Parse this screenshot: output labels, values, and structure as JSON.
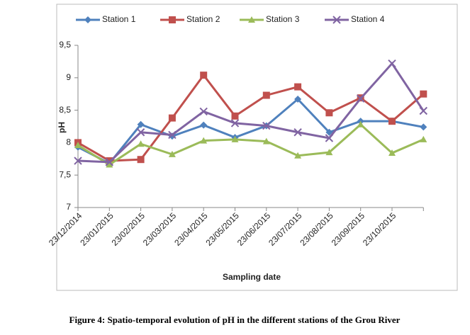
{
  "chart_data": {
    "type": "line",
    "caption": "Figure 4: Spatio-temporal evolution of pH in the different stations of the Grou River",
    "x_label": "Sampling date",
    "y_label": "pH",
    "categories": [
      "23/12/2014",
      "23/01/2015",
      "23/02/2015",
      "23/03/2015",
      "23/04/2015",
      "23/05/2015",
      "23/06/2015",
      "23/07/2015",
      "23/08/2015",
      "23/09/2015",
      "23/10/2015",
      null
    ],
    "ylim": [
      7,
      9.5
    ],
    "yticks": [
      7,
      {
        "value": 7.5,
        "label": "7,5"
      },
      8,
      {
        "value": 8.5,
        "label": "8,5"
      },
      9,
      {
        "value": 9.5,
        "label": "9,5"
      }
    ],
    "grid": false,
    "legend": "top",
    "series": [
      {
        "name": "Station 1",
        "color": "#4f81bd",
        "marker": "diamond",
        "values": [
          7.93,
          7.68,
          8.28,
          8.1,
          8.27,
          8.08,
          8.26,
          8.67,
          8.16,
          8.33,
          8.33,
          8.24
        ]
      },
      {
        "name": "Station 2",
        "color": "#c0504d",
        "marker": "square",
        "values": [
          8.0,
          7.72,
          7.74,
          8.38,
          9.04,
          8.41,
          8.73,
          8.86,
          8.46,
          8.69,
          8.33,
          8.75
        ]
      },
      {
        "name": "Station 3",
        "color": "#9bbb59",
        "marker": "triangle",
        "values": [
          7.96,
          7.66,
          7.98,
          7.82,
          8.03,
          8.05,
          8.02,
          7.8,
          7.85,
          8.28,
          7.84,
          8.05
        ]
      },
      {
        "name": "Station 4",
        "color": "#8064a2",
        "marker": "x",
        "values": [
          7.72,
          7.7,
          8.16,
          8.12,
          8.48,
          8.3,
          8.26,
          8.16,
          8.07,
          8.68,
          9.22,
          8.49
        ]
      }
    ]
  }
}
